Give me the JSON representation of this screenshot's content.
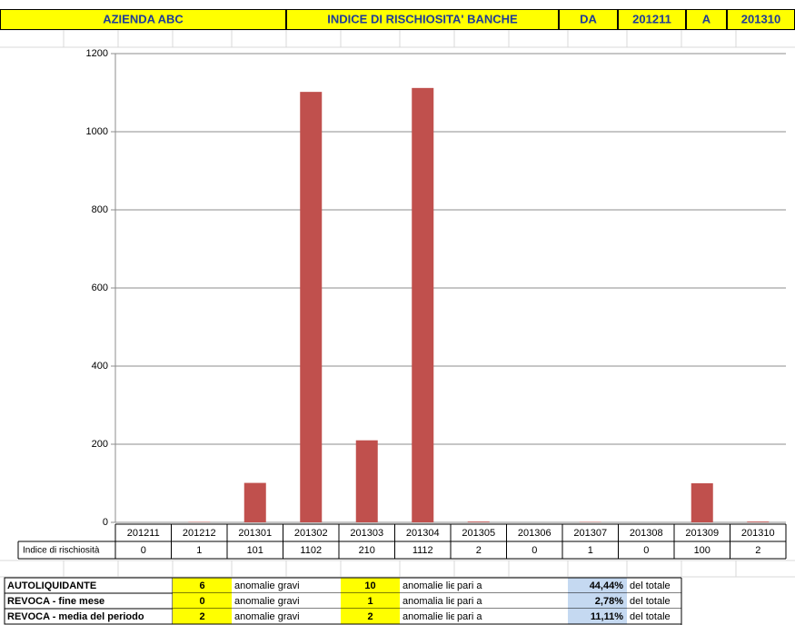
{
  "header": {
    "company": "AZIENDA ABC",
    "title": "INDICE DI RISCHIOSITA' BANCHE",
    "from_label": "DA",
    "from": "201211",
    "to_label": "A",
    "to": "201310"
  },
  "chart_data": {
    "type": "bar",
    "row_label": "Indice di rischiosità",
    "categories": [
      "201211",
      "201212",
      "201301",
      "201302",
      "201303",
      "201304",
      "201305",
      "201306",
      "201307",
      "201308",
      "201309",
      "201310"
    ],
    "values": [
      0,
      1,
      101,
      1102,
      210,
      1112,
      2,
      0,
      1,
      0,
      100,
      2
    ],
    "color": "#c0504d",
    "ylim": [
      0,
      1200
    ],
    "yticks": [
      0,
      200,
      400,
      600,
      800,
      1000,
      1200
    ],
    "grid": true
  },
  "summary": {
    "rows": [
      [
        "AUTOLIQUIDANTE",
        "6",
        "anomalie gravi",
        "10",
        "anomalie lievi",
        "pari a",
        "44,44%",
        "del totale"
      ],
      [
        "REVOCA - fine mese",
        "0",
        "anomalie gravi",
        "1",
        "anomalia lieve",
        "pari a",
        "2,78%",
        "del totale"
      ],
      [
        "REVOCA - media del periodo",
        "2",
        "anomalie gravi",
        "2",
        "anomalie lievi",
        "pari a",
        "11,11%",
        "del totale"
      ]
    ]
  }
}
